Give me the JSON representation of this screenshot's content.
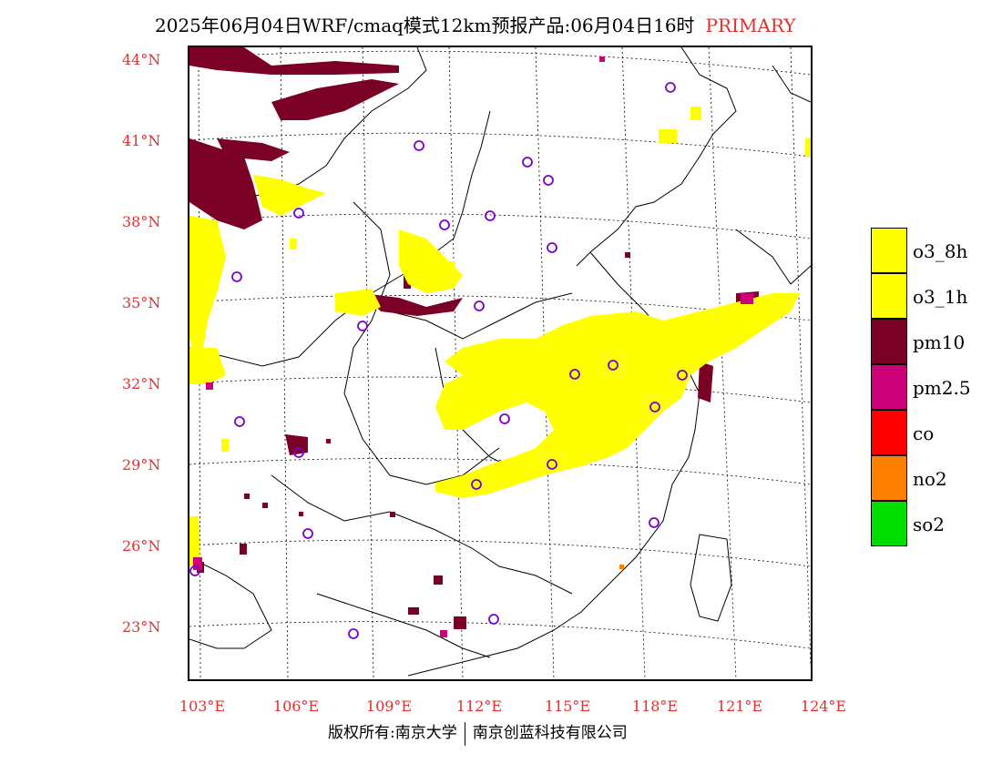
{
  "title": {
    "main": "2025年06月04日WRF/cmaq模式12km预报产品:06月04日16时",
    "tag": "PRIMARY"
  },
  "map": {
    "lat_labels": [
      "44°N",
      "41°N",
      "38°N",
      "35°N",
      "32°N",
      "29°N",
      "26°N",
      "23°N"
    ],
    "lon_labels": [
      "103°E",
      "106°E",
      "109°E",
      "112°E",
      "115°E",
      "118°E",
      "121°E",
      "124°E"
    ],
    "colors": {
      "o3_8h": "#ffff00",
      "o3_1h": "#ffff00",
      "pm10": "#7a0026",
      "pm25": "#cc0077",
      "co": "#ff0000",
      "no2": "#ff7f00",
      "so2": "#00dd00",
      "station": "#7a00cc"
    }
  },
  "legend": {
    "items": [
      {
        "label": "o3_8h",
        "color": "#ffff00"
      },
      {
        "label": "o3_1h",
        "color": "#ffff00"
      },
      {
        "label": "pm10",
        "color": "#7a0026"
      },
      {
        "label": "pm2.5",
        "color": "#cc0077"
      },
      {
        "label": "co",
        "color": "#ff0000"
      },
      {
        "label": "no2",
        "color": "#ff7f00"
      },
      {
        "label": "so2",
        "color": "#00dd00"
      }
    ]
  },
  "footer": {
    "left": "版权所有:南京大学",
    "right": "南京创蓝科技有限公司"
  }
}
